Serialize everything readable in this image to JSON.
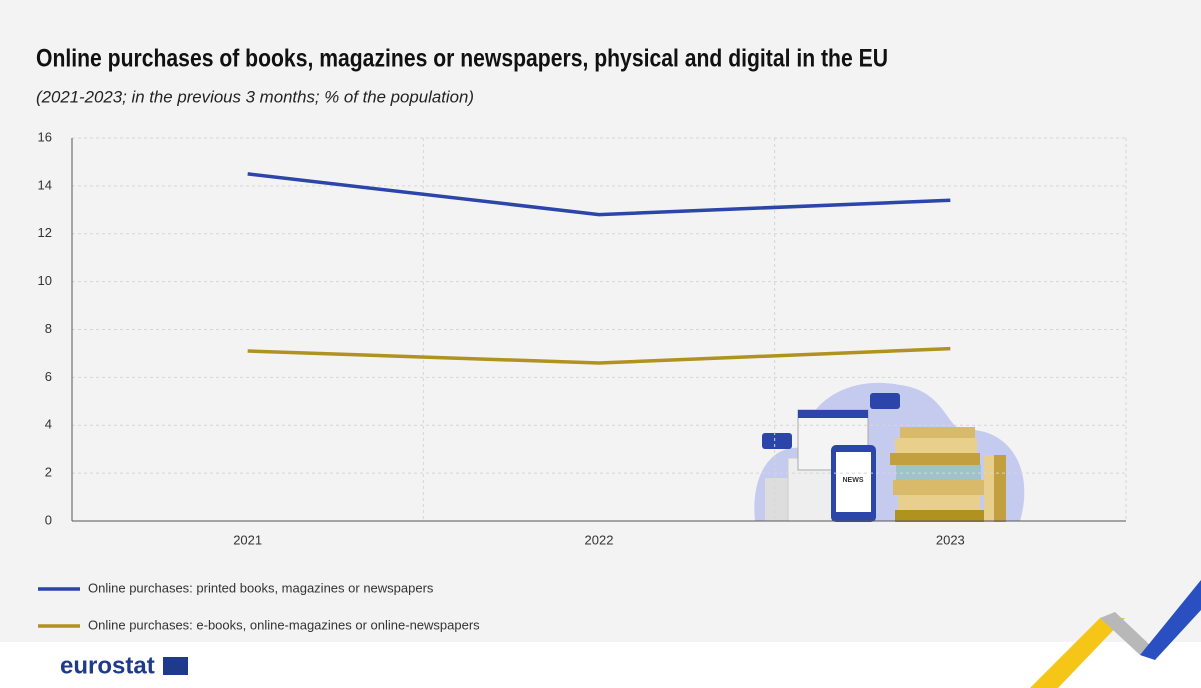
{
  "chart_data": {
    "type": "line",
    "title": "Online purchases of books, magazines or newspapers, physical and digital in the EU",
    "subtitle": "(2021-2023; in the previous 3 months; % of the population)",
    "categories": [
      "2021",
      "2022",
      "2023"
    ],
    "series": [
      {
        "name": "Online purchases: printed books, magazines or newspapers",
        "color": "#2b45a8",
        "values": [
          14.5,
          12.8,
          13.4
        ]
      },
      {
        "name": "Online purchases: e-books, online-magazines or online-newspapers",
        "color": "#b0921f",
        "values": [
          7.1,
          6.6,
          7.2
        ]
      }
    ],
    "ylim": [
      0,
      16
    ],
    "yticks": [
      0,
      2,
      4,
      6,
      8,
      10,
      12,
      14,
      16
    ],
    "grid": true
  },
  "logo": "eurostat"
}
